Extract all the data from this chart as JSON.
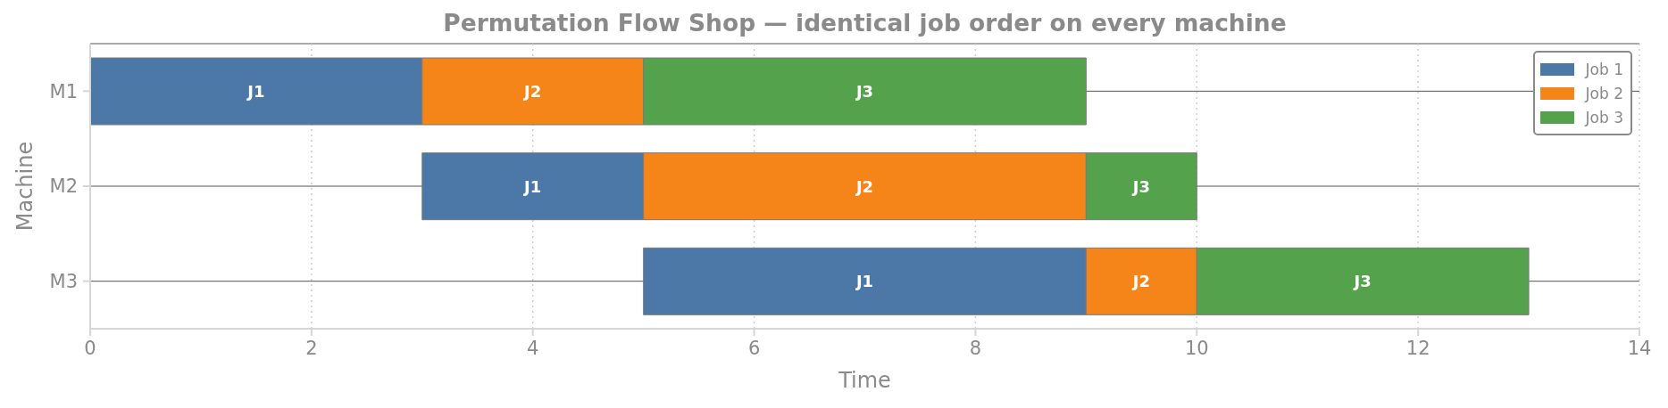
{
  "chart_data": {
    "type": "bar",
    "orientation": "horizontal",
    "title": "Permutation Flow Shop — identical job order on every machine",
    "xlabel": "Time",
    "ylabel": "Machine",
    "categories": [
      "M1",
      "M2",
      "M3"
    ],
    "series": [
      {
        "name": "Job 1",
        "color": "#4c78a8",
        "base": [
          0,
          3,
          5
        ],
        "values": [
          3,
          2,
          4
        ],
        "value_labels": [
          "J1",
          "J1",
          "J1"
        ]
      },
      {
        "name": "Job 2",
        "color": "#f58518",
        "base": [
          3,
          5,
          9
        ],
        "values": [
          2,
          4,
          1
        ],
        "value_labels": [
          "J2",
          "J2",
          "J2"
        ]
      },
      {
        "name": "Job 3",
        "color": "#54a24b",
        "base": [
          5,
          9,
          10
        ],
        "values": [
          4,
          1,
          3
        ],
        "value_labels": [
          "J3",
          "J3",
          "J3"
        ]
      }
    ],
    "xlim": [
      0,
      14
    ],
    "xticks": [
      0,
      2,
      4,
      6,
      8,
      10,
      12,
      14
    ],
    "grid": true,
    "legend": "top right"
  }
}
